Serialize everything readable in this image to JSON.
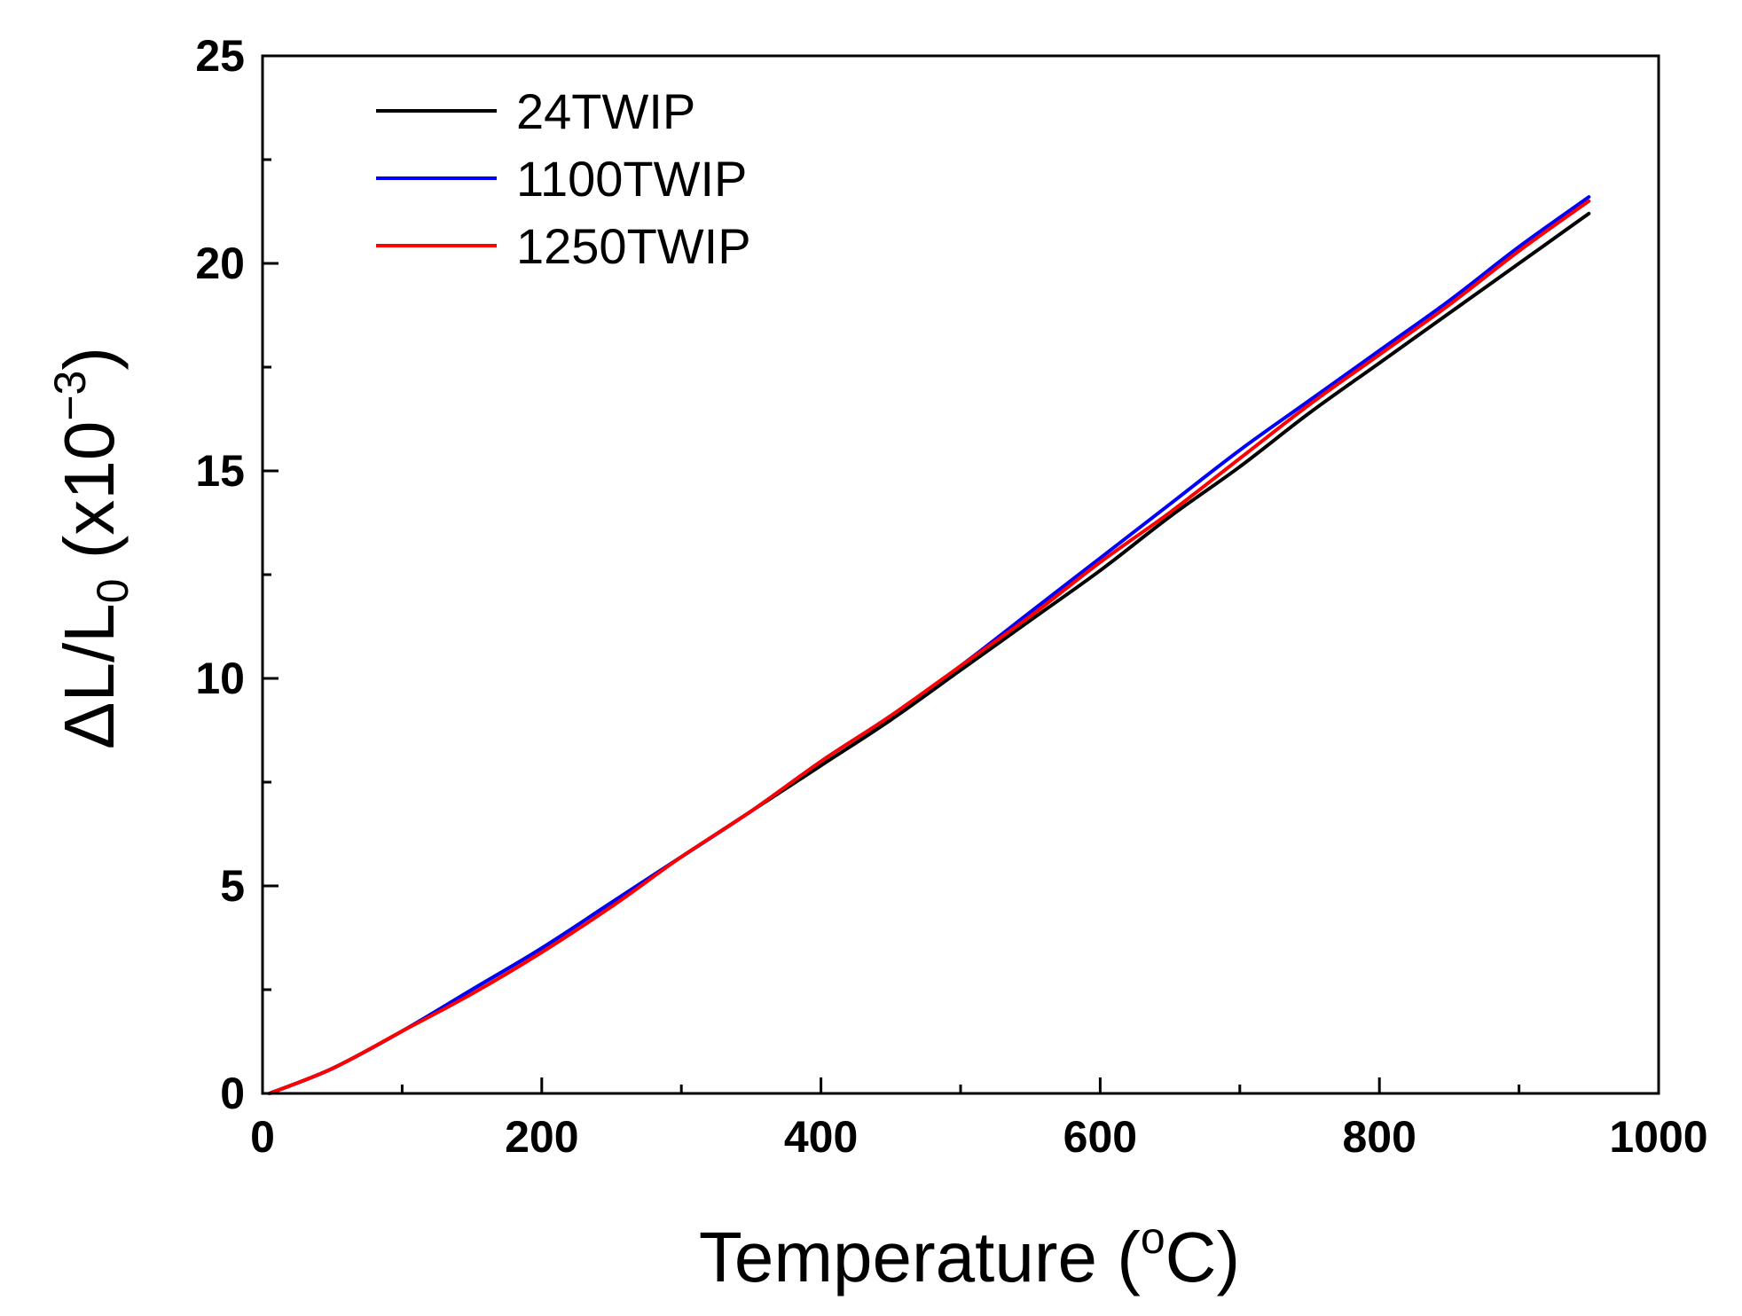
{
  "chart_data": {
    "type": "line",
    "title": "",
    "xlabel": "Temperature (",
    "xlabel_sup": "o",
    "xlabel_tail": "C)",
    "ylabel": "ΔL/L",
    "ylabel_sub": "0",
    "ylabel_mid": " (x10",
    "ylabel_sup": "−3",
    "ylabel_tail": ")",
    "xlim": [
      0,
      1000
    ],
    "ylim": [
      0,
      25
    ],
    "x_major_ticks": [
      0,
      200,
      400,
      600,
      800,
      1000
    ],
    "x_minor_ticks": [
      100,
      300,
      500,
      700,
      900
    ],
    "y_major_ticks": [
      0,
      5,
      10,
      15,
      20,
      25
    ],
    "y_minor_ticks": [
      2.5,
      7.5,
      12.5,
      17.5,
      22.5
    ],
    "x_tick_labels": [
      "0",
      "200",
      "400",
      "600",
      "800",
      "1000"
    ],
    "y_tick_labels": [
      "0",
      "5",
      "10",
      "15",
      "20",
      "25"
    ],
    "legend_position": "top-left",
    "series": [
      {
        "name": "24TWIP",
        "color": "#000000",
        "x": [
          5,
          50,
          100,
          150,
          200,
          250,
          300,
          350,
          400,
          450,
          500,
          550,
          600,
          650,
          700,
          750,
          800,
          850,
          900,
          950
        ],
        "y": [
          0.0,
          0.6,
          1.5,
          2.5,
          3.5,
          4.6,
          5.7,
          6.8,
          7.9,
          9.0,
          10.2,
          11.4,
          12.6,
          13.9,
          15.1,
          16.4,
          17.6,
          18.8,
          20.0,
          21.2
        ]
      },
      {
        "name": "1100TWIP",
        "color": "#0000ff",
        "x": [
          5,
          50,
          100,
          150,
          200,
          250,
          300,
          350,
          400,
          450,
          500,
          550,
          600,
          650,
          700,
          750,
          800,
          850,
          900,
          950
        ],
        "y": [
          0.0,
          0.6,
          1.5,
          2.5,
          3.5,
          4.6,
          5.7,
          6.8,
          8.0,
          9.1,
          10.3,
          11.6,
          12.9,
          14.2,
          15.5,
          16.7,
          17.9,
          19.1,
          20.4,
          21.6
        ]
      },
      {
        "name": "1250TWIP",
        "color": "#ff0000",
        "x": [
          5,
          50,
          100,
          150,
          200,
          250,
          300,
          350,
          400,
          450,
          500,
          550,
          600,
          650,
          700,
          750,
          800,
          850,
          900,
          950
        ],
        "y": [
          0.0,
          0.6,
          1.5,
          2.4,
          3.4,
          4.5,
          5.7,
          6.8,
          8.0,
          9.1,
          10.3,
          11.5,
          12.8,
          14.0,
          15.3,
          16.6,
          17.8,
          19.0,
          20.3,
          21.5
        ]
      }
    ]
  }
}
